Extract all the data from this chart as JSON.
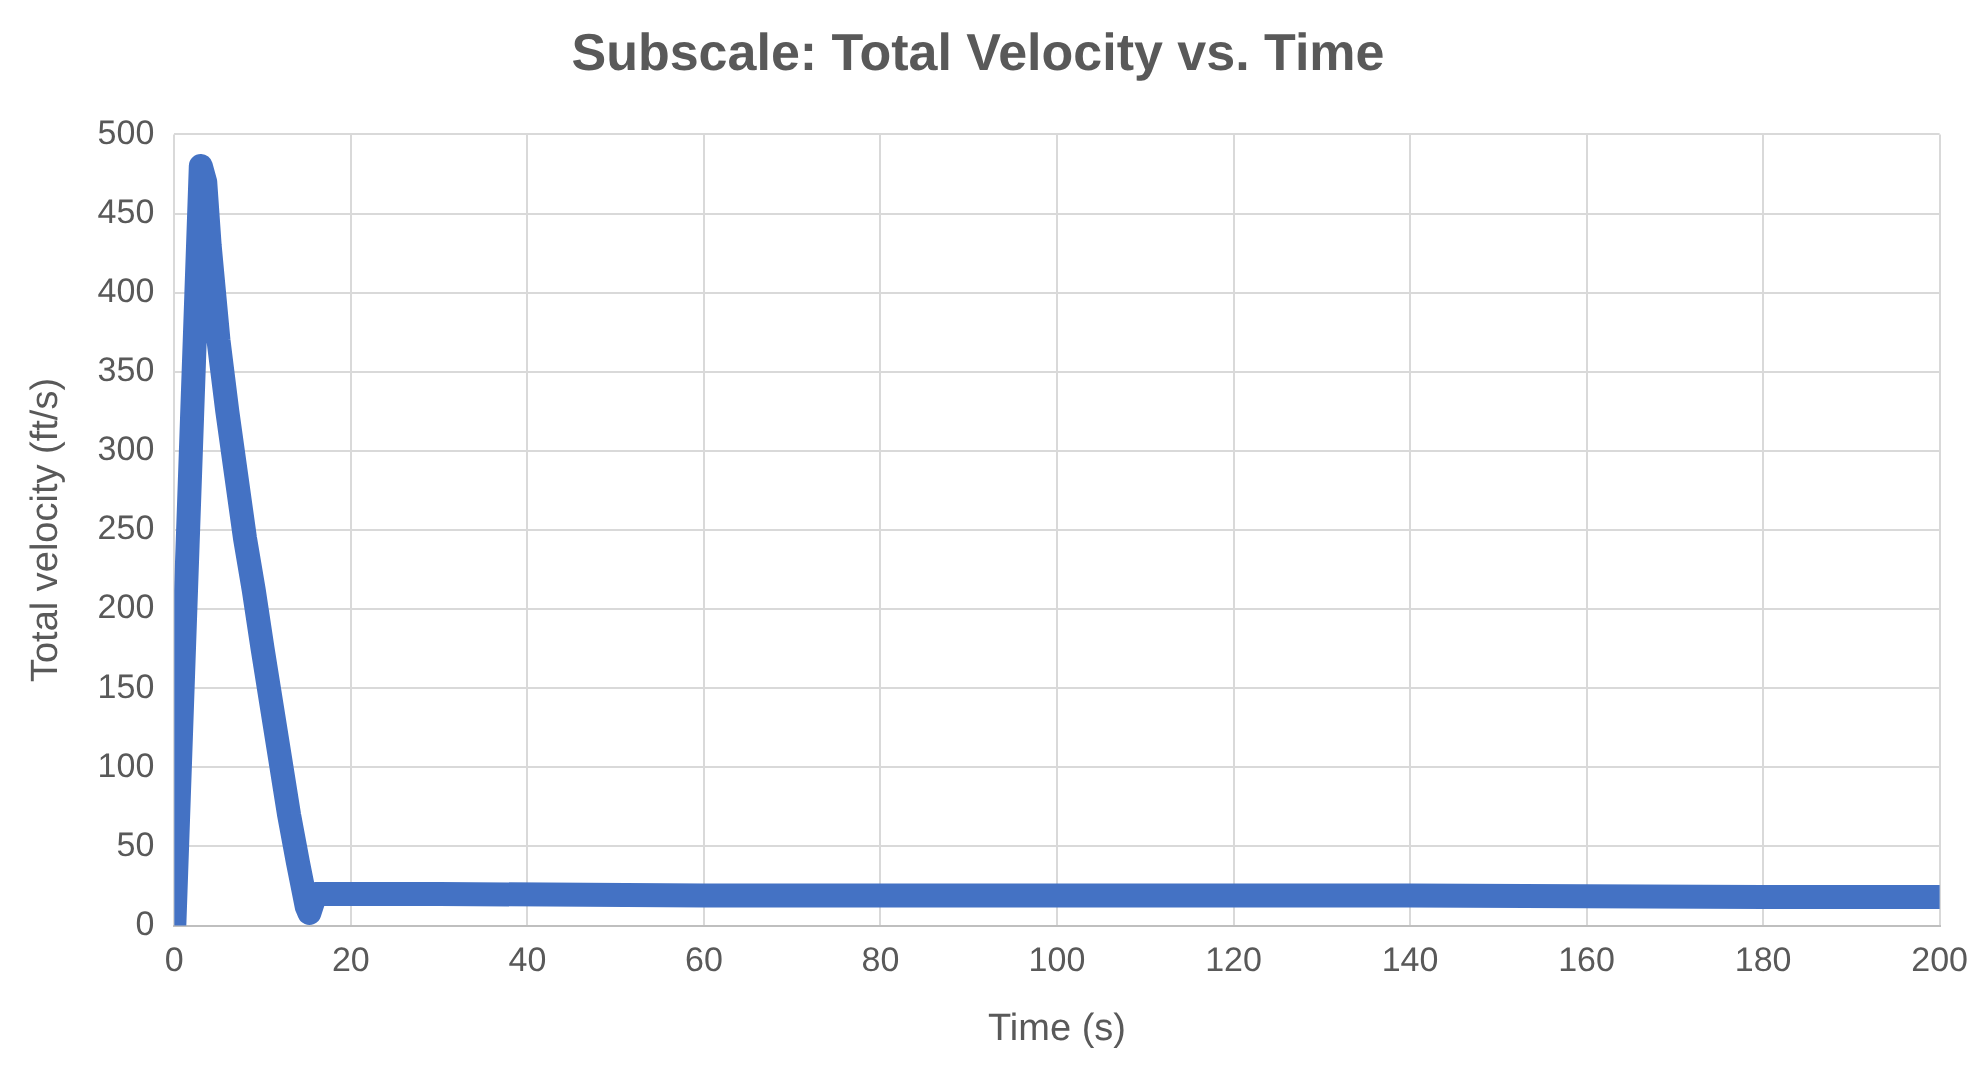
{
  "chart_data": {
    "type": "line",
    "title": "Subscale: Total Velocity vs. Time",
    "xlabel": "Time (s)",
    "ylabel": "Total velocity (ft/s)",
    "xlim": [
      0,
      200
    ],
    "xticks": [
      0,
      20,
      40,
      60,
      80,
      100,
      120,
      140,
      160,
      180,
      200
    ],
    "ylim": [
      0,
      500
    ],
    "yticks": [
      0,
      50,
      100,
      150,
      200,
      250,
      300,
      350,
      400,
      450,
      500
    ],
    "grid": true,
    "marker": "none",
    "line_style": "solid",
    "series": [
      {
        "color": "#4472c4",
        "x": [
          0,
          0.5,
          1,
          1.5,
          2,
          2.5,
          3,
          3.5,
          4,
          5,
          6,
          7,
          8,
          9,
          10,
          11,
          12,
          13,
          14,
          15,
          15.3,
          16,
          30,
          60,
          100,
          140,
          180,
          200
        ],
        "values": [
          0,
          80,
          160,
          240,
          320,
          400,
          480,
          470,
          430,
          370,
          325,
          285,
          245,
          212,
          175,
          140,
          105,
          70,
          40,
          12,
          8,
          20,
          20,
          19,
          19,
          19,
          18,
          18
        ]
      }
    ]
  }
}
